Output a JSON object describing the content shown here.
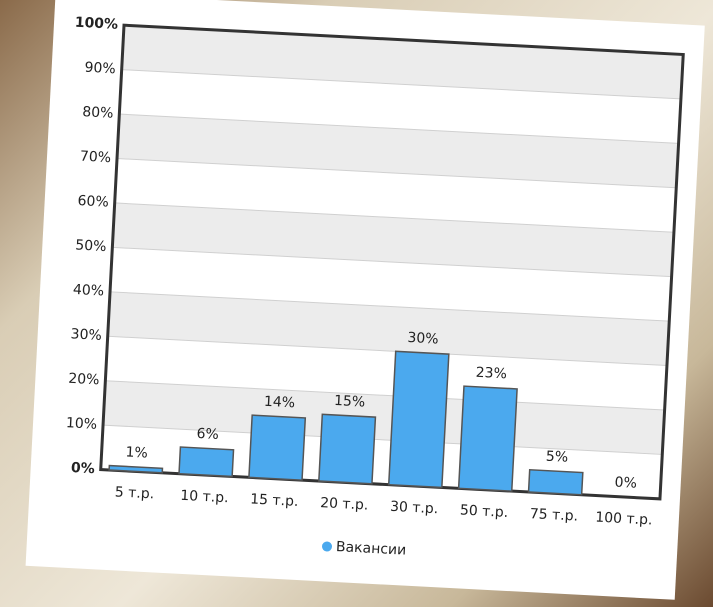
{
  "chart_data": {
    "type": "bar",
    "categories": [
      "5 т.р.",
      "10 т.р.",
      "15 т.р.",
      "20 т.р.",
      "30 т.р.",
      "50 т.р.",
      "75 т.р.",
      "100 т.р."
    ],
    "series": [
      {
        "name": "Вакансии",
        "color": "#4ba9ee",
        "values": [
          1,
          6,
          14,
          15,
          30,
          23,
          5,
          0
        ],
        "value_labels": [
          "1%",
          "6%",
          "14%",
          "15%",
          "30%",
          "23%",
          "5%",
          "0%"
        ]
      }
    ],
    "ylim": [
      0,
      100
    ],
    "yticks": [
      {
        "value": 0,
        "label": "0%"
      },
      {
        "value": 10,
        "label": "10%"
      },
      {
        "value": 20,
        "label": "20%"
      },
      {
        "value": 30,
        "label": "30%"
      },
      {
        "value": 40,
        "label": "40%"
      },
      {
        "value": 50,
        "label": "50%"
      },
      {
        "value": 60,
        "label": "60%"
      },
      {
        "value": 70,
        "label": "70%"
      },
      {
        "value": 80,
        "label": "80%"
      },
      {
        "value": 90,
        "label": "90%"
      },
      {
        "value": 100,
        "label": "100%"
      }
    ],
    "grid": true
  }
}
